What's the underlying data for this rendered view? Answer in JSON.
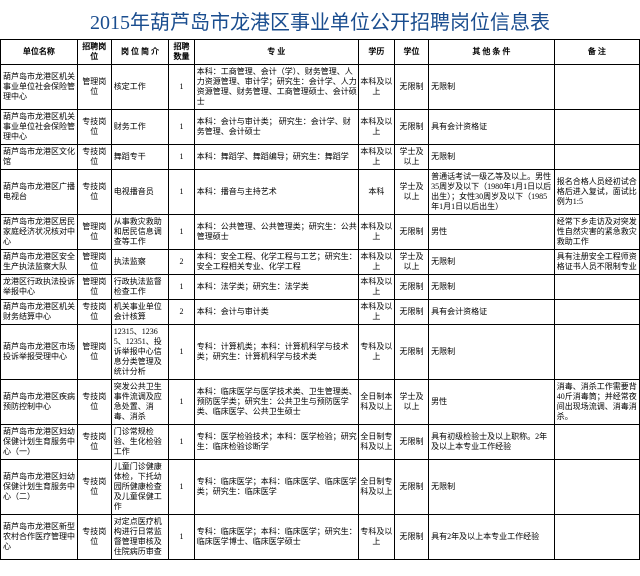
{
  "title": "2015年葫芦岛市龙港区事业单位公开招聘岗位信息表",
  "title_color": "#1a4d8f",
  "title_fontsize": 20,
  "border_color": "#000000",
  "background_color": "#ffffff",
  "columns": [
    {
      "key": "org",
      "label": "单位名称",
      "width": 72
    },
    {
      "key": "post",
      "label": "招聘岗位",
      "width": 32
    },
    {
      "key": "brief",
      "label": "岗 位\n简 介",
      "width": 54
    },
    {
      "key": "num",
      "label": "招聘\n数量",
      "width": 24
    },
    {
      "key": "major",
      "label": "专    业",
      "width": 154
    },
    {
      "key": "edu",
      "label": "学历",
      "width": 34
    },
    {
      "key": "degree",
      "label": "学位",
      "width": 32
    },
    {
      "key": "other",
      "label": "其 他 条 件",
      "width": 118
    },
    {
      "key": "remark",
      "label": "备  注",
      "width": 80
    }
  ],
  "rows": [
    {
      "org": "葫芦岛市龙港区机关事业单位社会保险管理中心",
      "post": "管理岗位",
      "brief": "核定工作",
      "num": "1",
      "major": "本科：工商管理、会计（学）、财务管理、人力资源管理、审计学；研究生：会计学、人力资源管理、财务管理、工商管理硕士、会计硕士",
      "edu": "本科及以上",
      "degree": "无限制",
      "other": "无限制",
      "remark": ""
    },
    {
      "org": "葫芦岛市龙港区机关事业单位社会保险管理中心",
      "post": "专技岗位",
      "brief": "财务工作",
      "num": "1",
      "major": "本科：会计与审计类；  研究生：会计学、财务管理、会计硕士",
      "edu": "本科及以上",
      "degree": "无限制",
      "other": "具有会计资格证",
      "remark": ""
    },
    {
      "org": "葫芦岛市龙港区文化馆",
      "post": "专技岗位",
      "brief": "舞蹈专干",
      "num": "1",
      "major": "本科：舞蹈学、舞蹈编导；研究生：舞蹈学",
      "edu": "本科及以上",
      "degree": "学士及以上",
      "other": "无限制",
      "remark": ""
    },
    {
      "org": "葫芦岛市龙港区广播电视台",
      "post": "专技岗位",
      "brief": "电视播音员",
      "num": "1",
      "major": "本科：播音与主持艺术",
      "edu": "本科",
      "degree": "学士及以上",
      "other": "普通话考试一级乙等及以上。男性35周岁及以下（1980年1月1日以后出生）；女性30周岁及以下（1985年1月1日以后出生）",
      "remark": "报名合格人员经初试合格后进入复试，面试比例为1:5"
    },
    {
      "org": "葫芦岛市龙港区居民家庭经济状况核对中心",
      "post": "管理岗位",
      "brief": "从事救灾救助和居民信息调查等工作",
      "num": "1",
      "major": "本科：公共管理、公共管理类；研究生：公共管理硕士",
      "edu": "本科及以上",
      "degree": "无限制",
      "other": "男性",
      "remark": "经常下乡走访及对突发性自然灾害的紧急救灾救助工作"
    },
    {
      "org": "葫芦岛市龙港区安全生产执法监察大队",
      "post": "管理岗位",
      "brief": "执法监察",
      "num": "2",
      "major": "本科：安全工程、化学工程与工艺；研究生：安全工程相关专业、化学工程",
      "edu": "本科及以上",
      "degree": "学士及以上",
      "other": "无限制",
      "remark": "具有注册安全工程师资格证书人员不限制专业"
    },
    {
      "org": "龙港区行政执法投诉举报中心",
      "post": "管理岗位",
      "brief": "行政执法监督检查工作",
      "num": "1",
      "major": "本科：法学类；研究生：法学类",
      "edu": "本科及以上",
      "degree": "无限制",
      "other": "无限制",
      "remark": ""
    },
    {
      "org": "葫芦岛市龙港区机关财务结算中心",
      "post": "专技岗位",
      "brief": "机关事业单位会计核算",
      "num": "2",
      "major": "本科：会计与审计类",
      "edu": "本科及以上",
      "degree": "无限制",
      "other": "具有会计资格证",
      "remark": ""
    },
    {
      "org": "葫芦岛市龙港区市场投诉举报受理中心",
      "post": "管理岗位",
      "brief": "12315、12365、12351、投诉举报中心信息分类管理及统计分析",
      "num": "1",
      "major": "专科：计算机类；本科：计算机科学与技术类；研究生：计算机科学与技术类",
      "edu": "专科及以上",
      "degree": "无限制",
      "other": "无限制",
      "remark": ""
    },
    {
      "org": "葫芦岛市龙港区疾病预防控制中心",
      "post": "专技岗位",
      "brief": "突发公共卫生事件流调及应急处置、消毒、消杀",
      "num": "1",
      "major": "本科：临床医学与医学技术类、卫生管理类、预防医学类；研究生：公共卫生与预防医学类、临床医学、公共卫生硕士",
      "edu": "全日制本科及以上",
      "degree": "学士及以上",
      "other": "男性",
      "remark": "消毒、消杀工作需要背40斤消毒筒；并经常夜间出现场流调、消毒消杀。"
    },
    {
      "org": "葫芦岛市龙港区妇幼保健计划生育服务中心（一）",
      "post": "专技岗位",
      "brief": "门诊常规检验、生化检验工作",
      "num": "1",
      "major": "专科：医学检验技术；本科：医学检验；研究生：临床检验诊断学",
      "edu": "全日制专科及以上",
      "degree": "无限制",
      "other": "具有初级检验士及以上职称。2年及以上本专业工作经验",
      "remark": ""
    },
    {
      "org": "葫芦岛市龙港区妇幼保健计划生育服务中心（二）",
      "post": "专技岗位",
      "brief": "儿童门诊健康体检，下托幼园所健康检查及儿童保健工作",
      "num": "1",
      "major": "专科：临床医学；本科：临床医学、临床医学类；研究生：临床医学",
      "edu": "全日制专科及以上",
      "degree": "无限制",
      "other": "无限制",
      "remark": ""
    },
    {
      "org": "葫芦岛市龙港区新型农村合作医疗管理中心",
      "post": "专技岗位",
      "brief": "对定点医疗机构进行日常监督管理审核及住院病历审查",
      "num": "1",
      "major": "专科：临床医学；本科：临床医学；研究生：临床医学博士、临床医学硕士",
      "edu": "专科及以上",
      "degree": "无限制",
      "other": "具有2年及以上本专业工作经验",
      "remark": ""
    }
  ]
}
